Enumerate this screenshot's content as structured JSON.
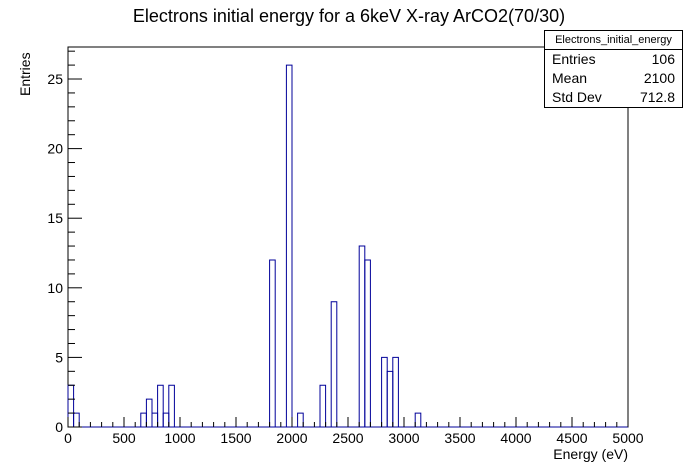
{
  "chart_data": {
    "type": "histogram",
    "title": "Electrons initial energy for a 6keV X-ray ArCO2(70/30)",
    "xlabel": "Energy (eV)",
    "ylabel": "Entries",
    "xlim": [
      0,
      5000
    ],
    "ylim": [
      0,
      27.3
    ],
    "xticks": [
      0,
      500,
      1000,
      1500,
      2000,
      2500,
      3000,
      3500,
      4000,
      4500,
      5000
    ],
    "yticks": [
      0,
      5,
      10,
      15,
      20,
      25
    ],
    "bin_width": 50,
    "line_color": "#000099",
    "bins": [
      {
        "x0": 0,
        "x1": 50,
        "count": 3
      },
      {
        "x0": 50,
        "x1": 100,
        "count": 1
      },
      {
        "x0": 650,
        "x1": 700,
        "count": 1
      },
      {
        "x0": 700,
        "x1": 750,
        "count": 2
      },
      {
        "x0": 750,
        "x1": 800,
        "count": 1
      },
      {
        "x0": 800,
        "x1": 850,
        "count": 3
      },
      {
        "x0": 850,
        "x1": 900,
        "count": 1
      },
      {
        "x0": 900,
        "x1": 950,
        "count": 3
      },
      {
        "x0": 1800,
        "x1": 1850,
        "count": 12
      },
      {
        "x0": 1950,
        "x1": 2000,
        "count": 26
      },
      {
        "x0": 2050,
        "x1": 2100,
        "count": 1
      },
      {
        "x0": 2250,
        "x1": 2300,
        "count": 3
      },
      {
        "x0": 2350,
        "x1": 2400,
        "count": 9
      },
      {
        "x0": 2600,
        "x1": 2650,
        "count": 13
      },
      {
        "x0": 2650,
        "x1": 2700,
        "count": 12
      },
      {
        "x0": 2800,
        "x1": 2850,
        "count": 5
      },
      {
        "x0": 2850,
        "x1": 2900,
        "count": 4
      },
      {
        "x0": 2900,
        "x1": 2950,
        "count": 5
      },
      {
        "x0": 3100,
        "x1": 3150,
        "count": 1
      }
    ]
  },
  "stats_box": {
    "name": "Electrons_initial_energy",
    "rows": [
      {
        "label": "Entries",
        "value": "106"
      },
      {
        "label": "Mean",
        "value": "2100"
      },
      {
        "label": "Std Dev",
        "value": "712.8"
      }
    ]
  }
}
